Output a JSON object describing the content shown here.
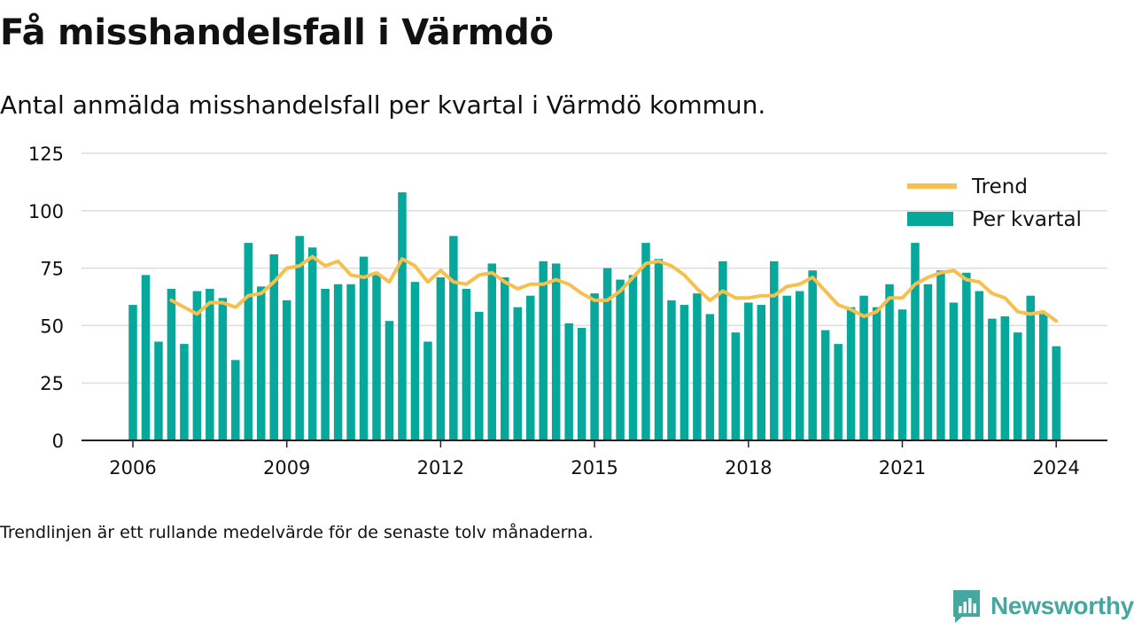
{
  "title": "Få misshandelsfall i Värmdö",
  "subtitle": "Antal anmälda misshandelsfall per kvartal i Värmdö kommun.",
  "note": "Trendlinjen är ett rullande medelvärde för de senaste tolv månaderna.",
  "brand": {
    "name": "Newsworthy",
    "color": "#45a8a0"
  },
  "colors": {
    "bar": "#05a89a",
    "trend": "#f7c04e",
    "grid": "#dddddd",
    "axis": "#222222"
  },
  "chart_data": {
    "type": "bar",
    "title": "Få misshandelsfall i Värmdö",
    "ylim": [
      0,
      125
    ],
    "yticks": [
      0,
      25,
      50,
      75,
      100,
      125
    ],
    "xticks": [
      "2006",
      "2009",
      "2012",
      "2015",
      "2018",
      "2021",
      "2024"
    ],
    "grid": true,
    "legend_position": "top-right",
    "categories": [
      "2006 Q1",
      "2006 Q2",
      "2006 Q3",
      "2006 Q4",
      "2007 Q1",
      "2007 Q2",
      "2007 Q3",
      "2007 Q4",
      "2008 Q1",
      "2008 Q2",
      "2008 Q3",
      "2008 Q4",
      "2009 Q1",
      "2009 Q2",
      "2009 Q3",
      "2009 Q4",
      "2010 Q1",
      "2010 Q2",
      "2010 Q3",
      "2010 Q4",
      "2011 Q1",
      "2011 Q2",
      "2011 Q3",
      "2011 Q4",
      "2012 Q1",
      "2012 Q2",
      "2012 Q3",
      "2012 Q4",
      "2013 Q1",
      "2013 Q2",
      "2013 Q3",
      "2013 Q4",
      "2014 Q1",
      "2014 Q2",
      "2014 Q3",
      "2014 Q4",
      "2015 Q1",
      "2015 Q2",
      "2015 Q3",
      "2015 Q4",
      "2016 Q1",
      "2016 Q2",
      "2016 Q3",
      "2016 Q4",
      "2017 Q1",
      "2017 Q2",
      "2017 Q3",
      "2017 Q4",
      "2018 Q1",
      "2018 Q2",
      "2018 Q3",
      "2018 Q4",
      "2019 Q1",
      "2019 Q2",
      "2019 Q3",
      "2019 Q4",
      "2020 Q1",
      "2020 Q2",
      "2020 Q3",
      "2020 Q4",
      "2021 Q1",
      "2021 Q2",
      "2021 Q3",
      "2021 Q4",
      "2022 Q1",
      "2022 Q2",
      "2022 Q3",
      "2022 Q4",
      "2023 Q1",
      "2023 Q2",
      "2023 Q3",
      "2023 Q4",
      "2024 Q1"
    ],
    "series": [
      {
        "name": "Per kvartal",
        "type": "bar",
        "values": [
          59,
          72,
          43,
          66,
          42,
          65,
          66,
          62,
          35,
          86,
          67,
          81,
          61,
          89,
          84,
          66,
          68,
          68,
          80,
          72,
          52,
          108,
          69,
          43,
          71,
          89,
          66,
          56,
          77,
          71,
          58,
          63,
          78,
          77,
          51,
          49,
          64,
          75,
          70,
          72,
          86,
          79,
          61,
          59,
          64,
          55,
          78,
          47,
          60,
          59,
          78,
          63,
          65,
          74,
          48,
          42,
          58,
          63,
          58,
          68,
          57,
          86,
          68,
          74,
          60,
          73,
          65,
          53,
          54,
          47,
          63,
          55,
          41
        ]
      },
      {
        "name": "Trend",
        "type": "line",
        "values": [
          null,
          null,
          null,
          61,
          58,
          55,
          60,
          60,
          58,
          63,
          64,
          69,
          75,
          76,
          80,
          76,
          78,
          72,
          71,
          73,
          69,
          79,
          76,
          69,
          74,
          69,
          68,
          72,
          73,
          69,
          66,
          68,
          68,
          70,
          68,
          64,
          61,
          61,
          65,
          71,
          77,
          78,
          76,
          72,
          66,
          61,
          65,
          62,
          62,
          63,
          63,
          67,
          68,
          71,
          65,
          59,
          57,
          54,
          56,
          62,
          62,
          68,
          71,
          73,
          74,
          70,
          69,
          64,
          62,
          56,
          55,
          56,
          52
        ]
      }
    ]
  }
}
